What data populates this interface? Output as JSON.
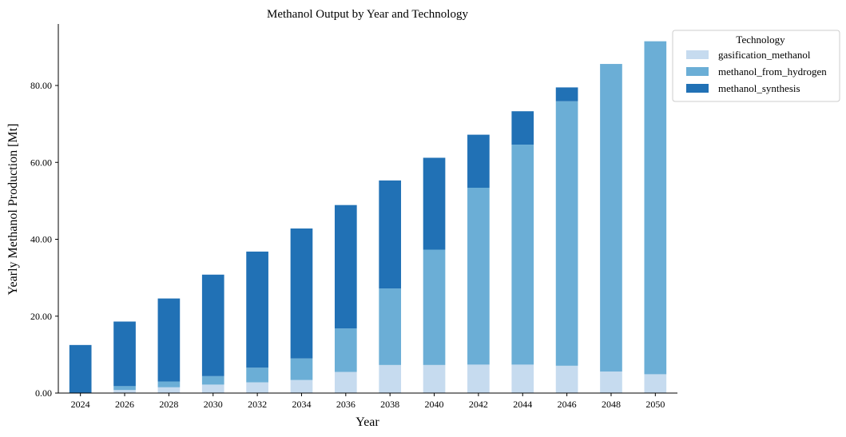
{
  "chart_data": {
    "type": "bar",
    "stacked": true,
    "title": "Methanol Output by Year and Technology",
    "xlabel": "Year",
    "ylabel": "Yearly Methanol Production [Mt]",
    "categories": [
      "2024",
      "2026",
      "2028",
      "2030",
      "2032",
      "2034",
      "2036",
      "2038",
      "2040",
      "2042",
      "2044",
      "2046",
      "2048",
      "2050"
    ],
    "ylim": [
      0,
      96
    ],
    "yticks": [
      0,
      20,
      40,
      60,
      80
    ],
    "ytick_labels": [
      "0.00",
      "20.00",
      "40.00",
      "60.00",
      "80.00"
    ],
    "legend": {
      "title": "Technology",
      "placement": "outside-top-right"
    },
    "series": [
      {
        "name": "gasification_methanol",
        "color": "#c6dbef",
        "values": [
          0,
          0.8,
          1.5,
          2.2,
          2.8,
          3.4,
          5.5,
          7.3,
          7.3,
          7.4,
          7.4,
          7.1,
          5.6,
          4.9
        ]
      },
      {
        "name": "methanol_from_hydrogen",
        "color": "#6baed6",
        "values": [
          0,
          1.0,
          1.5,
          2.2,
          3.8,
          5.6,
          11.3,
          19.9,
          30.0,
          46.0,
          57.2,
          68.8,
          80.0,
          86.6
        ]
      },
      {
        "name": "methanol_synthesis",
        "color": "#2171b5",
        "values": [
          12.5,
          16.8,
          21.6,
          26.4,
          30.2,
          33.8,
          32.1,
          28.1,
          23.9,
          13.8,
          8.7,
          3.6,
          0,
          0
        ]
      }
    ]
  }
}
